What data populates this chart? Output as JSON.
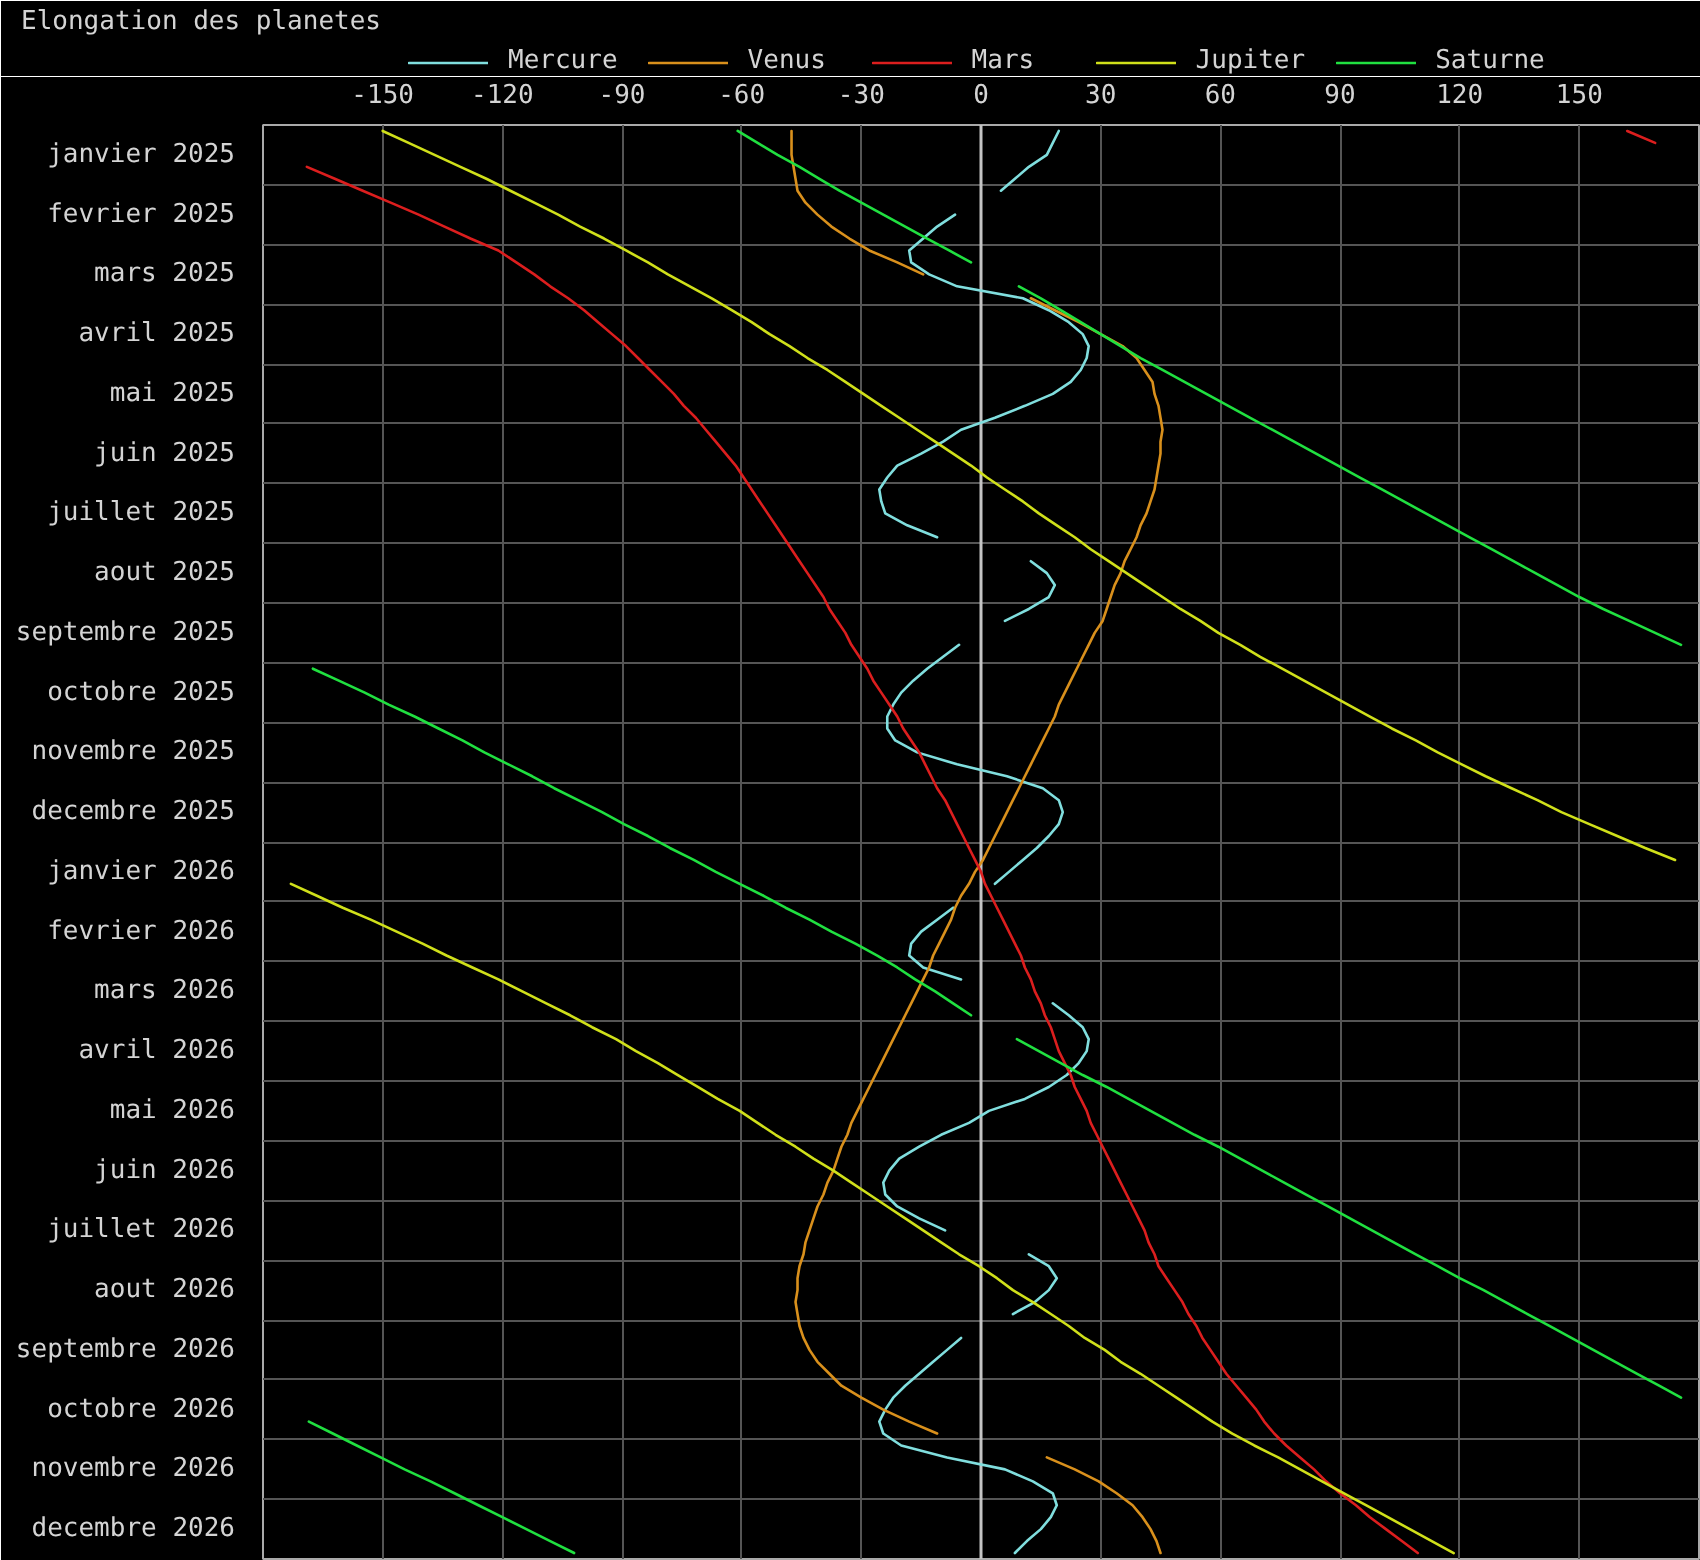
{
  "chart_data": {
    "type": "line",
    "title": "Elongation des planetes",
    "orientation": "horizontal",
    "categories": [
      null,
      null,
      "janvier 2025",
      null,
      null,
      null,
      null,
      "fevrier 2025",
      null,
      null,
      null,
      null,
      "mars 2025",
      null,
      null,
      null,
      null,
      "avril 2025",
      null,
      null,
      null,
      null,
      "mai 2025",
      null,
      null,
      null,
      null,
      "juin 2025",
      null,
      null,
      null,
      null,
      "juillet 2025",
      null,
      null,
      null,
      null,
      "aout 2025",
      null,
      null,
      null,
      null,
      "septembre 2025",
      null,
      null,
      null,
      null,
      "octobre 2025",
      null,
      null,
      null,
      null,
      "novembre 2025",
      null,
      null,
      null,
      null,
      "decembre 2025",
      null,
      null,
      null,
      null,
      "janvier 2026",
      null,
      null,
      null,
      null,
      "fevrier 2026",
      null,
      null,
      null,
      null,
      "mars 2026",
      null,
      null,
      null,
      null,
      "avril 2026",
      null,
      null,
      null,
      null,
      "mai 2026",
      null,
      null,
      null,
      null,
      "juin 2026",
      null,
      null,
      null,
      null,
      "juillet 2026",
      null,
      null,
      null,
      null,
      "aout 2026",
      null,
      null,
      null,
      null,
      "septembre 2026",
      null,
      null,
      null,
      null,
      "octobre 2026",
      null,
      null,
      null,
      null,
      "novembre 2026",
      null,
      null,
      null,
      null,
      "decembre 2026",
      null,
      null
    ],
    "xlim": [
      -180,
      180
    ],
    "xticks": [
      -150,
      -120,
      -90,
      -60,
      -30,
      0,
      30,
      60,
      90,
      120,
      150
    ],
    "grid": true,
    "legend": "top",
    "ref_lines": [
      {
        "axis": "x",
        "value": 0,
        "color": "#c4c4c4"
      }
    ],
    "series": [
      {
        "name": "Mercure",
        "color": "#80dede",
        "values": [
          19.5,
          18,
          16.5,
          12,
          8.5,
          5,
          null,
          -6.5,
          -11,
          -14.5,
          -18,
          -17.5,
          -13,
          -6,
          10.5,
          17,
          22,
          25.5,
          27,
          26.5,
          25,
          22.5,
          18,
          11,
          3.5,
          -5,
          -9.5,
          -15,
          -21,
          -23.5,
          -25.5,
          -25,
          -24,
          -18.5,
          -11,
          null,
          12.5,
          16.5,
          18.5,
          17,
          12,
          6,
          null,
          -5.5,
          -9.5,
          -13.5,
          -17,
          -20,
          -22,
          -23.5,
          -23.5,
          -21.5,
          -16,
          -6,
          6.5,
          15.5,
          19.5,
          20.5,
          19.5,
          17,
          14,
          10.5,
          7,
          3.5,
          null,
          -7,
          -11,
          -15,
          -17.5,
          -18,
          -14.5,
          -5,
          null,
          18,
          22,
          25.5,
          27,
          26.5,
          24.5,
          21.5,
          17,
          11,
          2,
          -3,
          -10,
          -15.5,
          -20.5,
          -23,
          -24.5,
          -24,
          -21,
          -15.5,
          -9,
          null,
          12,
          17,
          19,
          17,
          13.5,
          8,
          null,
          -5,
          -8.5,
          -12,
          -15.5,
          -19,
          -22,
          -24,
          -25.5,
          -24.5,
          -20,
          -8.5,
          6,
          13,
          18,
          19,
          17.5,
          15,
          11.5,
          8.5
        ]
      },
      {
        "name": "Venus",
        "color": "#d9901c",
        "values": [
          -47.5,
          -47.5,
          -47.5,
          -47,
          -46.5,
          -46,
          -44,
          -41,
          -37.5,
          -33,
          -28,
          -21,
          -14.5,
          null,
          12.5,
          18.5,
          24.5,
          30,
          35.5,
          39,
          41,
          43,
          43.5,
          44.5,
          45,
          45.5,
          45,
          45,
          44.5,
          44,
          43.5,
          42.5,
          41.5,
          40,
          39,
          37.5,
          36,
          35,
          33.5,
          32.5,
          31.5,
          30.5,
          28.5,
          27,
          25.5,
          24,
          22.5,
          21,
          19.5,
          18.5,
          17,
          15.5,
          14,
          12.5,
          11,
          9.5,
          8,
          6.5,
          5,
          3.5,
          2,
          0.5,
          -1.5,
          -3,
          -5,
          -6.5,
          -7.5,
          -9,
          -10.5,
          -12,
          -13,
          -14.5,
          -16,
          -17.5,
          -19,
          -20.5,
          -22,
          -23.5,
          -25,
          -26.5,
          -28,
          -29.5,
          -31,
          -32.5,
          -33.5,
          -35,
          -36,
          -37,
          -38.5,
          -39.5,
          -41,
          -42,
          -43,
          -44,
          -44.5,
          -45.5,
          -46,
          -46,
          -46.5,
          -46,
          -45.5,
          -44.5,
          -43,
          -41,
          -38,
          -35,
          -30,
          -24.5,
          -18,
          -11,
          null,
          16.5,
          23.5,
          29.5,
          34,
          38,
          40.5,
          42.5,
          44,
          45
        ]
      },
      {
        "name": "Mars",
        "color": "#dc1e1e",
        "values": [
          162,
          169,
          null,
          -169,
          -162,
          -155,
          -148,
          -141,
          -134.5,
          -128,
          -121,
          -116.5,
          -112,
          -108,
          -103.5,
          -99.5,
          -96,
          -92.5,
          -89,
          -86,
          -83,
          -80,
          -77,
          -74.5,
          -71.5,
          -69,
          -66.5,
          -64,
          -61.5,
          -59.5,
          -57.5,
          -55.5,
          -53.5,
          -51.5,
          -49.5,
          -47.5,
          -45.5,
          -43.5,
          -41.5,
          -39.5,
          -38,
          -36,
          -34,
          -32.5,
          -30.5,
          -28.5,
          -27,
          -25,
          -23,
          -21,
          -19.5,
          -17.5,
          -15.5,
          -14,
          -12.5,
          -11,
          -9,
          -7.5,
          -6,
          -4.5,
          -3,
          -1.5,
          0,
          1,
          2.5,
          4,
          5.5,
          7,
          8.5,
          10,
          11,
          12.5,
          13.5,
          15,
          16,
          17.5,
          18.5,
          19.5,
          21,
          22.5,
          23.5,
          25,
          26.5,
          27.5,
          29,
          30.5,
          32,
          33.5,
          35,
          36.5,
          38,
          39.5,
          41,
          42,
          43.5,
          44.5,
          46.5,
          48.5,
          50.5,
          52,
          54,
          55.5,
          57.5,
          59.5,
          61.5,
          64,
          66.5,
          69,
          71,
          73.5,
          76.5,
          80,
          83.5,
          86.5,
          90,
          94,
          97.5,
          101.5,
          105.5,
          109.5
        ]
      },
      {
        "name": "Jupiter",
        "color": "#d0e01a",
        "values": [
          -150,
          -143.5,
          -137,
          -130.5,
          -124,
          -118,
          -112,
          -106,
          -100.5,
          -94.5,
          -89,
          -83.5,
          -78.5,
          -73,
          -67.5,
          -62.5,
          -57.5,
          -53,
          -48,
          -43.5,
          -38.5,
          -34,
          -29.5,
          -25,
          -20.5,
          -16,
          -11.5,
          -7,
          -2.5,
          1.5,
          6,
          10.5,
          14.5,
          19,
          23.5,
          27.5,
          32,
          36.5,
          41,
          45.5,
          50,
          55,
          59.5,
          65,
          70,
          75.5,
          81,
          86.5,
          92,
          97.5,
          103,
          109,
          114.5,
          120.5,
          126.5,
          133,
          139.5,
          145.5,
          152.5,
          159.5,
          166.5,
          174,
          null,
          -173,
          -166.5,
          -160,
          -153,
          -146.5,
          -140,
          -134,
          -127.5,
          -121,
          -115,
          -109,
          -103,
          -97.5,
          -91.5,
          -86.5,
          -81,
          -76,
          -71,
          -66,
          -60.5,
          -56,
          -51.5,
          -46.5,
          -42,
          -37,
          -32.5,
          -28,
          -23.5,
          -19,
          -14.5,
          -10,
          -5.5,
          -0.5,
          4,
          8,
          13,
          17.5,
          22,
          26,
          31,
          35,
          40,
          44.5,
          49,
          53.5,
          58,
          63,
          68.5,
          74.5,
          80,
          85.5,
          91,
          96.5,
          102,
          107.5,
          113,
          118.5
        ]
      },
      {
        "name": "Saturne",
        "color": "#20e040",
        "values": [
          -61,
          -56,
          -51,
          -45.5,
          -40.5,
          -35.5,
          -30,
          -24.5,
          -19,
          -13.5,
          -8,
          -2.5,
          null,
          9.5,
          15,
          20,
          25,
          30,
          35,
          40,
          45.5,
          51,
          56.5,
          62,
          67.5,
          73,
          78.5,
          84,
          89.5,
          95,
          100.5,
          106,
          111.5,
          117,
          122.5,
          128,
          133.5,
          139,
          144.5,
          150,
          156,
          162.5,
          169,
          175.5,
          null,
          -167.5,
          -161,
          -154.5,
          -148.5,
          -142,
          -136,
          -130,
          -124.5,
          -118.5,
          -112.5,
          -107,
          -101,
          -95,
          -89.5,
          -83.5,
          -78,
          -72,
          -66.5,
          -60.5,
          -54.5,
          -49,
          -43,
          -37.5,
          -31.5,
          -26,
          -21,
          -16.5,
          -11.5,
          -7,
          -2.5,
          null,
          9,
          14.5,
          20,
          25.5,
          31.5,
          37,
          42.5,
          48,
          53.5,
          59.5,
          65,
          70.5,
          76,
          81.5,
          87,
          92.5,
          98,
          103.5,
          109,
          114.5,
          120,
          126,
          131.5,
          137,
          142.5,
          148,
          153.5,
          159,
          164.5,
          170,
          175.5,
          null,
          -168.5,
          -162.5,
          -156.5,
          -150.5,
          -144.5,
          -138,
          -132,
          -126,
          -120,
          -114,
          -108,
          -102
        ]
      }
    ]
  }
}
